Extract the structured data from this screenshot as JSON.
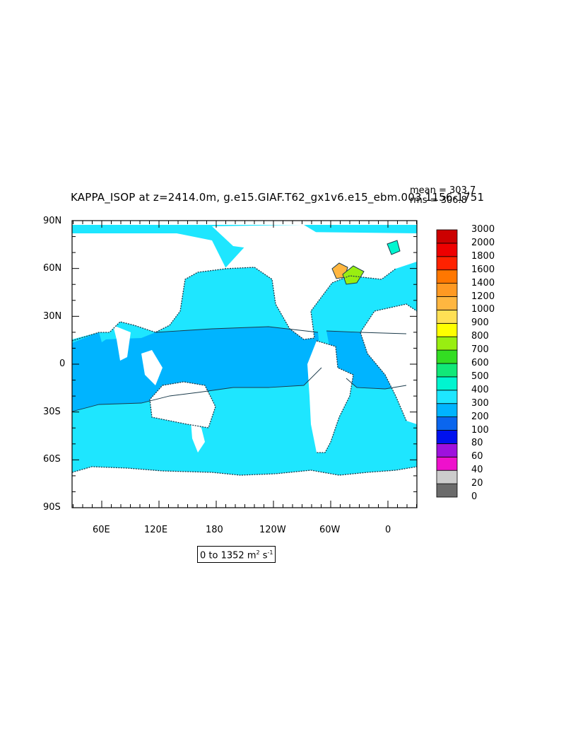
{
  "title": "KAPPA_ISOP at z=2414.0m, g.e15.GIAF.T62_gx1v6.e15_ebm.003 1156-1751",
  "stats": {
    "mean": "mean = 303.7",
    "rms": "rms = 306.8"
  },
  "units": {
    "range": "0 to 1352",
    "unit_base": "m",
    "unit_exp1": "2",
    "unit_s": "s",
    "unit_exp2": "-1"
  },
  "lat_labels": [
    "90N",
    "60N",
    "30N",
    "0",
    "30S",
    "60S",
    "90S"
  ],
  "lon_labels": [
    "60E",
    "120E",
    "180",
    "120W",
    "60W",
    "0"
  ],
  "colorbar": {
    "levels": [
      "0",
      "20",
      "40",
      "60",
      "80",
      "100",
      "200",
      "300",
      "400",
      "500",
      "600",
      "700",
      "800",
      "900",
      "1000",
      "1200",
      "1400",
      "1600",
      "1800",
      "2000",
      "3000"
    ],
    "colors": [
      "#6b6b6b",
      "#cccccc",
      "#ee11cc",
      "#9e11dd",
      "#0011ee",
      "#0a66ee",
      "#00b4ff",
      "#1ee6ff",
      "#00f5d0",
      "#11e878",
      "#33dd22",
      "#99ee11",
      "#ffff00",
      "#ffe055",
      "#ffb640",
      "#ff9922",
      "#ff7700",
      "#ff2200",
      "#ee0000",
      "#cc0000"
    ]
  },
  "colors": {
    "ocean_main": "#1ee6ff",
    "ocean_band": "#00b4ff",
    "land": "#ffffff",
    "coast": "#1a3a4a"
  }
}
